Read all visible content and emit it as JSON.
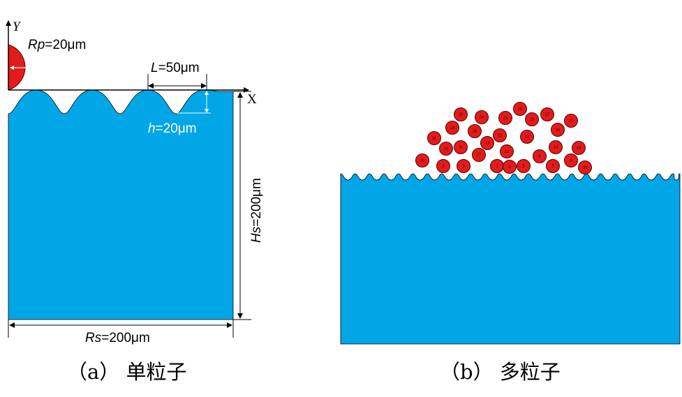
{
  "colors": {
    "substrate": "#00a6e6",
    "particle": "#e31b1b",
    "particle_stroke": "#5a0000",
    "ink": "#000000",
    "dim_white": "#ffffff"
  },
  "panel_a": {
    "y_axis": "Y",
    "x_axis": "X",
    "particle_radius_prefix": "Rp",
    "particle_radius_value": "=20μm",
    "wavelength_prefix": "L",
    "wavelength_value": "=50μm",
    "amplitude_prefix": "h",
    "amplitude_value": "=20μm",
    "height_prefix": "Hs",
    "height_value": "=200μm",
    "width_prefix": "Rs",
    "width_value": "=200μm",
    "caption": "（a） 单粒子"
  },
  "panel_b": {
    "caption": "（b） 多粒子",
    "particles": [
      {
        "label": "20"
      },
      {
        "label": "24"
      },
      {
        "label": "18"
      },
      {
        "label": "25"
      },
      {
        "label": "23"
      },
      {
        "label": "29"
      },
      {
        "label": "17"
      },
      {
        "label": "21"
      },
      {
        "label": "28"
      },
      {
        "label": "15"
      },
      {
        "label": "16"
      },
      {
        "label": "11"
      },
      {
        "label": "22"
      },
      {
        "label": "13"
      },
      {
        "label": "10"
      },
      {
        "label": "9"
      },
      {
        "label": "27"
      },
      {
        "label": "12"
      },
      {
        "label": "14"
      },
      {
        "label": "19"
      },
      {
        "label": "26"
      },
      {
        "label": "2"
      },
      {
        "label": "3"
      },
      {
        "label": "1"
      },
      {
        "label": "4"
      },
      {
        "label": "5"
      },
      {
        "label": "6"
      },
      {
        "label": "7"
      },
      {
        "label": "8"
      },
      {
        "label": "30"
      }
    ]
  }
}
